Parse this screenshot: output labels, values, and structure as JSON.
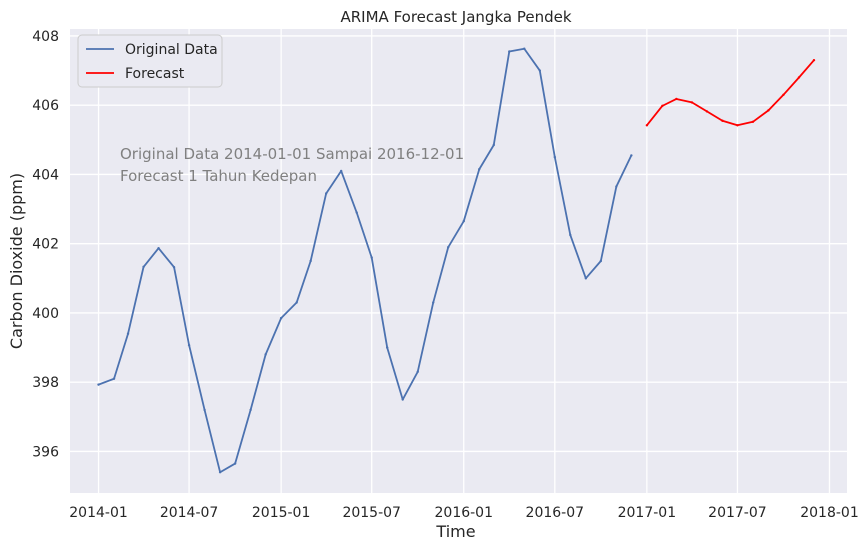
{
  "chart_data": {
    "type": "line",
    "title": "ARIMA Forecast Jangka Pendek",
    "xlabel": "Time",
    "ylabel": "Carbon Dioxide (ppm)",
    "xlim": [
      "2013-11-05",
      "2018-02-05"
    ],
    "ylim": [
      394.8,
      408.2
    ],
    "xticks": [
      "2014-01",
      "2014-07",
      "2015-01",
      "2015-07",
      "2016-01",
      "2016-07",
      "2017-01",
      "2017-07",
      "2018-01"
    ],
    "yticks": [
      396,
      398,
      400,
      402,
      404,
      406,
      408
    ],
    "grid": true,
    "legend_position": "top-left",
    "background_color": "#eaeaf2",
    "grid_color": "#ffffff",
    "annotations": [
      "Original Data 2014-01-01 Sampai 2016-12-01",
      "Forecast 1 Tahun Kedepan"
    ],
    "series": [
      {
        "name": "Original Data",
        "color": "#4c72b0",
        "x": [
          "2014-01",
          "2014-02",
          "2014-03",
          "2014-04",
          "2014-05",
          "2014-06",
          "2014-07",
          "2014-08",
          "2014-09",
          "2014-10",
          "2014-11",
          "2014-12",
          "2015-01",
          "2015-02",
          "2015-03",
          "2015-04",
          "2015-05",
          "2015-06",
          "2015-07",
          "2015-08",
          "2015-09",
          "2015-10",
          "2015-11",
          "2015-12",
          "2016-01",
          "2016-02",
          "2016-03",
          "2016-04",
          "2016-05",
          "2016-06",
          "2016-07",
          "2016-08",
          "2016-09",
          "2016-10",
          "2016-11",
          "2016-12"
        ],
        "values": [
          397.93,
          398.1,
          399.4,
          401.33,
          401.87,
          401.32,
          399.07,
          397.2,
          395.4,
          395.65,
          397.2,
          398.8,
          399.85,
          400.3,
          401.5,
          403.45,
          404.1,
          402.9,
          401.6,
          399.0,
          397.5,
          398.3,
          400.3,
          401.9,
          402.65,
          404.15,
          404.85,
          407.55,
          407.63,
          407.0,
          404.5,
          402.25,
          401.0,
          401.5,
          403.65,
          404.55
        ]
      },
      {
        "name": "Forecast",
        "color": "#ff0000",
        "x": [
          "2017-01",
          "2017-02",
          "2017-03",
          "2017-04",
          "2017-05",
          "2017-06",
          "2017-07",
          "2017-08",
          "2017-09",
          "2017-10",
          "2017-11",
          "2017-12"
        ],
        "values": [
          405.42,
          405.98,
          406.18,
          406.08,
          405.82,
          405.55,
          405.42,
          405.52,
          405.85,
          406.3,
          406.8,
          407.3
        ]
      }
    ]
  }
}
